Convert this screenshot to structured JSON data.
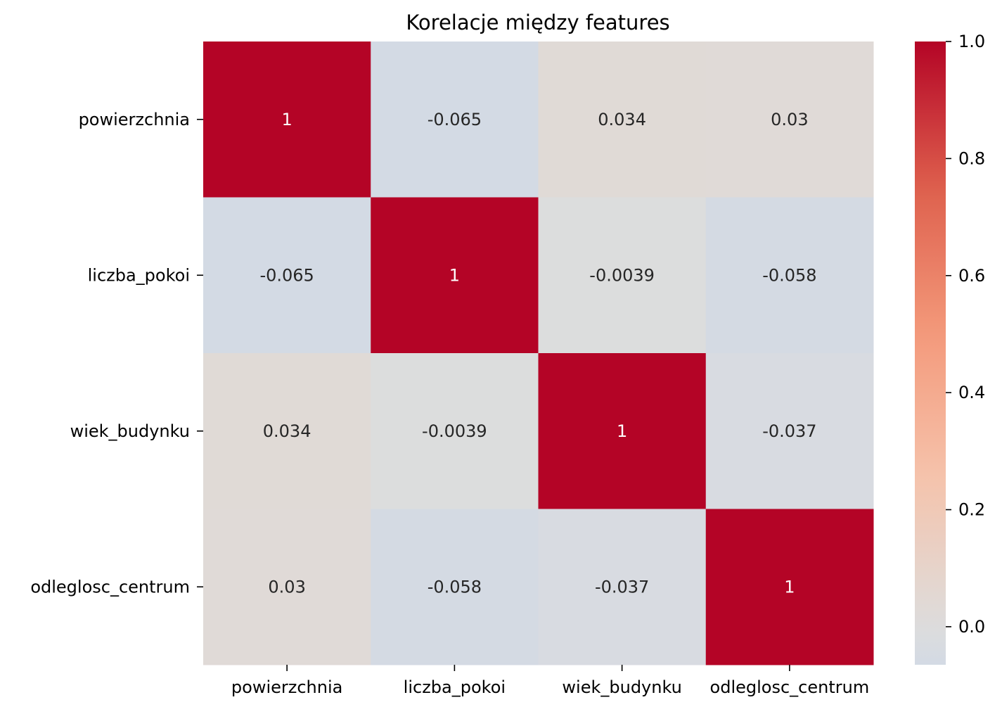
{
  "chart_data": {
    "type": "heatmap",
    "title": "Korelacje między features",
    "x_categories": [
      "powierzchnia",
      "liczba_pokoi",
      "wiek_budynku",
      "odleglosc_centrum"
    ],
    "y_categories": [
      "powierzchnia",
      "liczba_pokoi",
      "wiek_budynku",
      "odleglosc_centrum"
    ],
    "values": [
      [
        1,
        -0.065,
        0.034,
        0.03
      ],
      [
        -0.065,
        1,
        -0.0039,
        -0.058
      ],
      [
        0.034,
        -0.0039,
        1,
        -0.037
      ],
      [
        0.03,
        -0.058,
        -0.037,
        1
      ]
    ],
    "annotations": [
      [
        "1",
        "-0.065",
        "0.034",
        "0.03"
      ],
      [
        "-0.065",
        "1",
        "-0.0039",
        "-0.058"
      ],
      [
        "0.034",
        "-0.0039",
        "1",
        "-0.037"
      ],
      [
        "0.03",
        "-0.058",
        "-0.037",
        "1"
      ]
    ],
    "colormap": "coolwarm",
    "color_center": 0,
    "colorbar": {
      "range": [
        -0.065,
        1.0
      ],
      "ticks": [
        0.0,
        0.2,
        0.4,
        0.6,
        0.8,
        1.0
      ],
      "tick_labels": [
        "0.0",
        "0.2",
        "0.4",
        "0.6",
        "0.8",
        "1.0"
      ]
    },
    "xlabel": "",
    "ylabel": "",
    "grid": false
  }
}
